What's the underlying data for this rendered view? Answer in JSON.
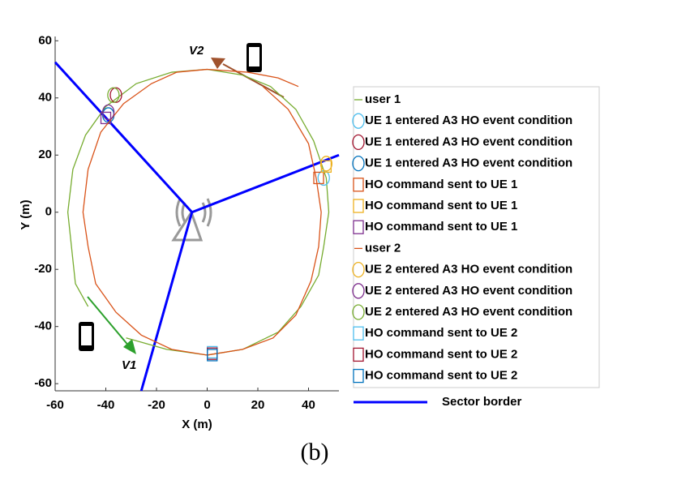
{
  "chart_data": {
    "type": "trajectory",
    "xlabel": "X (m)",
    "ylabel": "Y (m)",
    "caption": "(b)",
    "xlim": [
      -60,
      52
    ],
    "ylim": [
      -62.5,
      61.5
    ],
    "xticks": [
      -60,
      -40,
      -20,
      0,
      20,
      40
    ],
    "yticks": [
      60,
      40,
      20,
      0,
      -20,
      -40,
      -60
    ],
    "annotations": [
      "V1",
      "V2"
    ],
    "series": [
      {
        "name": "user 1",
        "color": "#77ac30",
        "marker": "line",
        "x": [
          -47,
          -52,
          -55,
          -53,
          -48,
          -40,
          -28,
          -14,
          0,
          14,
          25,
          35,
          42,
          47,
          48,
          46,
          44,
          37,
          28,
          14,
          0,
          -16,
          -32
        ],
        "y": [
          -33,
          -25,
          0,
          15,
          27,
          37,
          45,
          49,
          50,
          48,
          44,
          36,
          25,
          12,
          0,
          -12,
          -22,
          -33,
          -42,
          -48,
          -50,
          -48,
          -44
        ]
      },
      {
        "name": "UE 1 entered A3 HO event condition",
        "color": "#4dbeee",
        "marker": "circle",
        "x": [
          46
        ],
        "y": [
          12
        ]
      },
      {
        "name": "UE 1 entered A3 HO event condition",
        "color": "#a2142f",
        "marker": "circle",
        "x": [
          -36
        ],
        "y": [
          41
        ]
      },
      {
        "name": "UE 1 entered A3 HO event condition",
        "color": "#0072bd",
        "marker": "circle",
        "x": [
          -39
        ],
        "y": [
          34
        ]
      },
      {
        "name": "HO command sent to UE 1",
        "color": "#d95319",
        "marker": "square",
        "x": [
          44
        ],
        "y": [
          12
        ]
      },
      {
        "name": "HO command sent to UE 1",
        "color": "#edb120",
        "marker": "square",
        "x": [
          47
        ],
        "y": [
          16
        ]
      },
      {
        "name": "HO command sent to UE 1",
        "color": "#7e2f8e",
        "marker": "square",
        "x": [
          -40
        ],
        "y": [
          33
        ]
      },
      {
        "name": "user 2",
        "color": "#d95319",
        "marker": "line",
        "x": [
          36,
          28,
          16,
          0,
          -12,
          -22,
          -33,
          -42,
          -47,
          -49,
          -47,
          -44,
          -36,
          -26,
          -14,
          0,
          14,
          26,
          35,
          41,
          44,
          45,
          43,
          40,
          32,
          22
        ],
        "y": [
          44,
          47,
          49,
          50,
          49,
          45,
          38,
          28,
          15,
          0,
          -12,
          -25,
          -35,
          -43,
          -48,
          -50,
          -48,
          -44,
          -36,
          -24,
          -12,
          0,
          12,
          24,
          36,
          44
        ]
      },
      {
        "name": "UE 2 entered A3 HO event condition",
        "color": "#edb120",
        "marker": "circle",
        "x": [
          47
        ],
        "y": [
          17
        ]
      },
      {
        "name": "UE 2 entered A3 HO event condition",
        "color": "#7e2f8e",
        "marker": "circle",
        "x": [
          -39
        ],
        "y": [
          35
        ]
      },
      {
        "name": "UE 2 entered A3 HO event condition",
        "color": "#77ac30",
        "marker": "circle",
        "x": [
          -37
        ],
        "y": [
          41
        ]
      },
      {
        "name": "HO command sent to UE 2",
        "color": "#4dbeee",
        "marker": "square",
        "x": [
          2
        ],
        "y": [
          -49
        ]
      },
      {
        "name": "HO command sent to UE 2",
        "color": "#a2142f",
        "marker": "square",
        "x": [
          2
        ],
        "y": [
          -49.5
        ]
      },
      {
        "name": "HO command sent to UE 2",
        "color": "#0072bd",
        "marker": "square",
        "x": [
          2
        ],
        "y": [
          -50
        ]
      }
    ],
    "sector_border": {
      "name": "Sector border",
      "color": "#0000ff",
      "x": [
        -60,
        -6,
        52,
        null,
        -6,
        -26
      ],
      "y": [
        52.5,
        0,
        20,
        null,
        0,
        -62.5
      ]
    }
  }
}
